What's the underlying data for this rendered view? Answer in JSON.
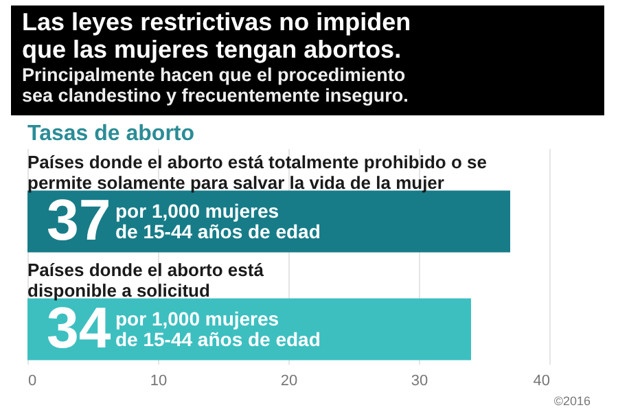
{
  "chart_data": {
    "type": "bar",
    "orientation": "horizontal",
    "title": "Las leyes restrictivas no impiden\nque las mujeres tengan abortos.",
    "subtitle": "Principalmente hacen que el procedimiento\nsea clandestino y frecuentemente inseguro.",
    "ylabel": "Tasas de aborto",
    "categories": [
      "Países donde el aborto está totalmente prohibido o se\npermite solamente para salvar la vida de la mujer",
      "Países donde el aborto está\ndisponible a solicitud"
    ],
    "values": [
      37,
      34
    ],
    "colors": [
      "#177c88",
      "#3dbfc0"
    ],
    "data_labels": true,
    "annotations": [
      "por 1,000 mujeres\nde 15-44 años de edad",
      "por 1,000 mujeres\nde 15-44 años de edad",
      "©2016"
    ],
    "xlim": [
      0,
      40
    ],
    "xticks": [
      0,
      10,
      20,
      30,
      40
    ],
    "grid": "x"
  }
}
